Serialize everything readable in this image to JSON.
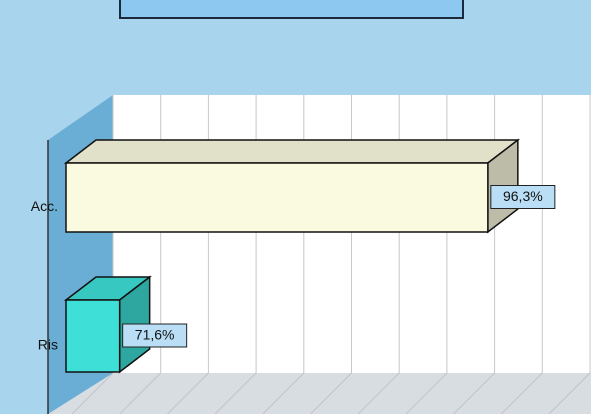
{
  "chart_data": {
    "type": "bar3d",
    "orientation": "horizontal",
    "categories": [
      "Acc.",
      "Ris"
    ],
    "values": [
      96.3,
      71.6
    ],
    "value_labels": [
      "96,3%",
      "71,6%"
    ],
    "colors": [
      "#fafae0",
      "#3ddfd6"
    ],
    "xlim": [
      68,
      100
    ],
    "xticks": [
      68,
      71.2,
      74.4,
      77.6,
      80.8,
      84,
      87.2,
      90.4,
      93.6,
      96.8,
      100
    ],
    "grid": true
  }
}
